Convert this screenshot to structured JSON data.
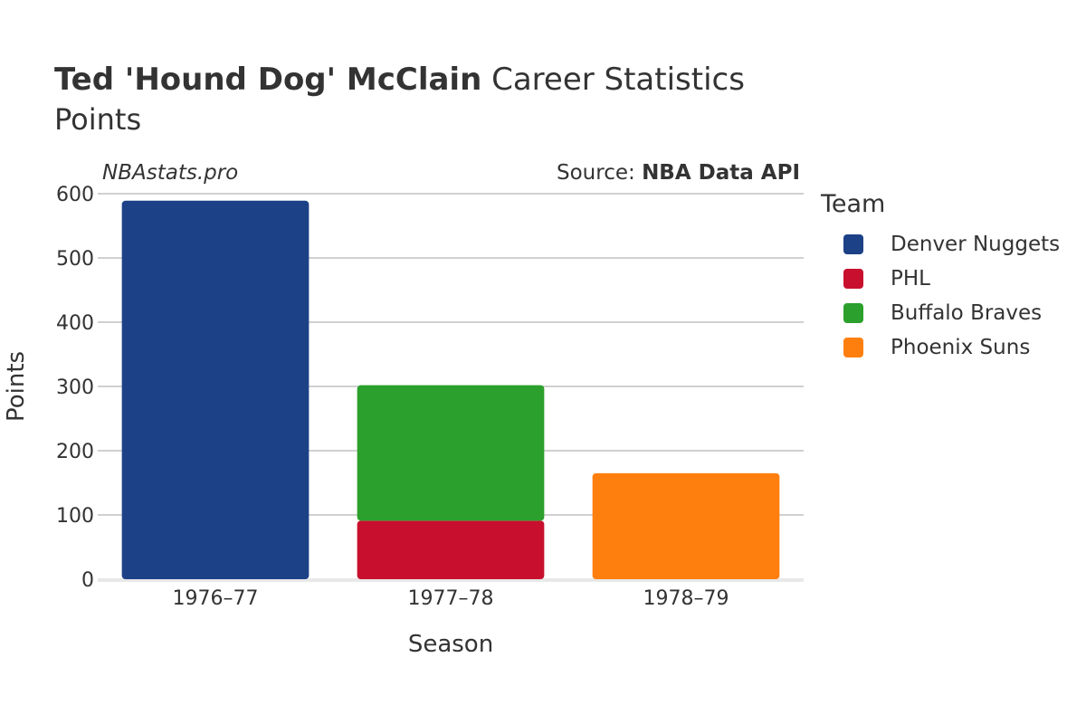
{
  "header": {
    "title_bold": "Ted 'Hound Dog' McClain",
    "title_rest": "Career Statistics",
    "subtitle": "Points",
    "site": "NBAstats.pro",
    "source_label": "Source:",
    "source_name": "NBA Data API"
  },
  "legend": {
    "title": "Team",
    "items": [
      {
        "label": "Denver Nuggets",
        "color": "#1c4187"
      },
      {
        "label": "PHL",
        "color": "#c8102e"
      },
      {
        "label": "Buffalo Braves",
        "color": "#2ca02c"
      },
      {
        "label": "Phoenix Suns",
        "color": "#ff7f0e"
      }
    ]
  },
  "chart_data": {
    "type": "bar",
    "stacked": true,
    "categories": [
      "1976–77",
      "1977–78",
      "1978–79"
    ],
    "series": [
      {
        "name": "Denver Nuggets",
        "color": "#1c4187",
        "values": [
          589,
          0,
          0
        ]
      },
      {
        "name": "PHL",
        "color": "#c8102e",
        "values": [
          0,
          91,
          0
        ]
      },
      {
        "name": "Buffalo Braves",
        "color": "#2ca02c",
        "values": [
          0,
          211,
          0
        ]
      },
      {
        "name": "Phoenix Suns",
        "color": "#ff7f0e",
        "values": [
          0,
          0,
          165
        ]
      }
    ],
    "xlabel": "Season",
    "ylabel": "Points",
    "ylim": [
      0,
      600
    ],
    "yticks": [
      0,
      100,
      200,
      300,
      400,
      500,
      600
    ],
    "grid": true
  }
}
